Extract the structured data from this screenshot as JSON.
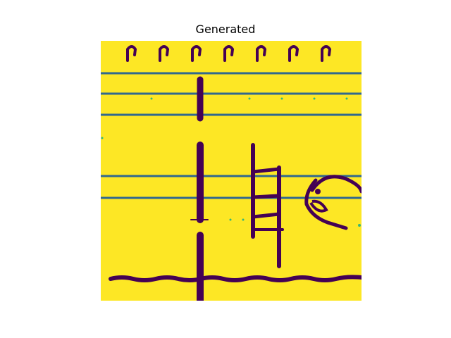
{
  "figure": {
    "title": "Generated"
  },
  "image": {
    "colormap": "viridis",
    "background_color": "#fde725",
    "ink_color": "#440154",
    "line_color": "#31688e",
    "edge_color": "#35b779"
  }
}
